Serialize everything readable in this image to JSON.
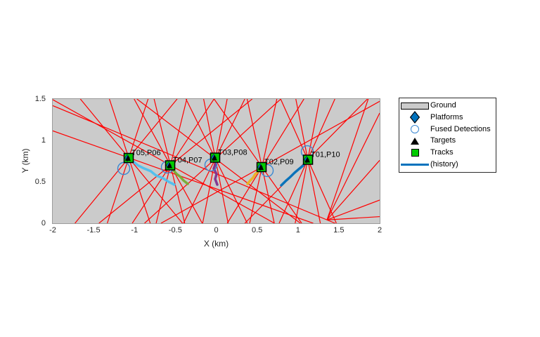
{
  "chart_data": {
    "type": "scatter",
    "title": "",
    "xlabel": "X (km)",
    "ylabel": "Y (km)",
    "xlim": [
      -2,
      2
    ],
    "ylim": [
      0,
      1.5
    ],
    "xticks": [
      -2,
      -1.5,
      -1,
      -0.5,
      0,
      0.5,
      1,
      1.5,
      2
    ],
    "yticks": [
      0,
      0.5,
      1,
      1.5
    ],
    "grid": false,
    "legend_position": "right-outside",
    "colors": {
      "ground": "#cbcbcb",
      "ray": "#ff0000",
      "platform": "#0072bd",
      "detection": "#3a87d2",
      "target": "#000000",
      "track": "#00cc00",
      "history_legend": "#0072bd"
    },
    "tracks": [
      {
        "label": "T05,P06",
        "x": -1.071,
        "y": 0.788,
        "history_color": "#4dbeee",
        "history": [
          [
            -1.071,
            0.788
          ],
          [
            -0.959,
            0.7
          ],
          [
            -0.885,
            0.663
          ],
          [
            -0.8,
            0.628
          ],
          [
            -0.738,
            0.578
          ],
          [
            -0.655,
            0.545
          ],
          [
            -0.584,
            0.502
          ],
          [
            -0.512,
            0.466
          ]
        ],
        "fused_detection": {
          "x": -1.131,
          "y": 0.661
        }
      },
      {
        "label": "T04,P07",
        "x": -0.563,
        "y": 0.699,
        "history_color": "#77ac30",
        "history": [
          [
            -0.563,
            0.699
          ],
          [
            -0.52,
            0.636
          ],
          [
            -0.484,
            0.595
          ],
          [
            -0.44,
            0.562
          ],
          [
            -0.398,
            0.515
          ],
          [
            -0.348,
            0.475
          ]
        ],
        "fused_detection": {
          "x": -0.598,
          "y": 0.678
        }
      },
      {
        "label": "T03,P08",
        "x": -0.013,
        "y": 0.792,
        "history_color": "#7e2f8e",
        "history": [
          [
            -0.013,
            0.792
          ],
          [
            -0.004,
            0.72
          ],
          [
            -0.03,
            0.661
          ],
          [
            0.004,
            0.593
          ],
          [
            -0.013,
            0.534
          ],
          [
            0.013,
            0.466
          ]
        ],
        "fused_detection": {
          "x": -0.065,
          "y": 0.703
        }
      },
      {
        "label": "T02,P09",
        "x": 0.555,
        "y": 0.678,
        "history_color": "#edb120",
        "history": [
          [
            0.555,
            0.678
          ],
          [
            0.52,
            0.627
          ],
          [
            0.477,
            0.593
          ],
          [
            0.452,
            0.551
          ],
          [
            0.417,
            0.517
          ],
          [
            0.383,
            0.475
          ]
        ],
        "fused_detection": {
          "x": 0.624,
          "y": 0.636
        }
      },
      {
        "label": "T01,P10",
        "x": 1.123,
        "y": 0.767,
        "history_color": "#0072bd",
        "history": [
          [
            1.123,
            0.767
          ],
          [
            1.062,
            0.695
          ],
          [
            1.011,
            0.653
          ],
          [
            0.959,
            0.61
          ],
          [
            0.907,
            0.559
          ],
          [
            0.847,
            0.508
          ],
          [
            0.796,
            0.458
          ]
        ],
        "fused_detection": {
          "x": 1.114,
          "y": 0.864
        }
      }
    ],
    "detection_rays": [
      [
        -1.333,
        0,
        -0.833,
        1.5
      ],
      [
        -0.807,
        0,
        -1.307,
        1.5
      ],
      [
        -1.728,
        0,
        -0.478,
        1.5
      ],
      [
        -0.412,
        0,
        -1.662,
        1.5
      ],
      [
        -2,
        1.492,
        0.713,
        0
      ],
      [
        -0.735,
        0,
        -0.36,
        1.5
      ],
      [
        -0.385,
        0,
        -0.76,
        1.5
      ],
      [
        -1.027,
        0,
        -0.027,
        1.5
      ],
      [
        -0.171,
        0,
        -1.004,
        1.5
      ],
      [
        -1.435,
        0,
        0.44,
        1.5
      ],
      [
        -0.166,
        0,
        0.134,
        1.5
      ],
      [
        0.146,
        0,
        -0.154,
        1.5
      ],
      [
        -0.4,
        0,
        0.35,
        1.5
      ],
      [
        0.38,
        0,
        -0.37,
        1.5
      ],
      [
        -0.877,
        0,
        0.79,
        1.5
      ],
      [
        1.03,
        0,
        -0.97,
        1.5
      ],
      [
        0.409,
        0,
        0.742,
        1.5
      ],
      [
        0.711,
        0,
        0.378,
        1.5
      ],
      [
        0.135,
        0,
        1.073,
        1.5
      ],
      [
        1.046,
        0,
        -0.026,
        1.5
      ],
      [
        -0.676,
        0,
        2,
        1.472
      ],
      [
        0.966,
        0,
        1.266,
        1.5
      ],
      [
        1.274,
        0,
        0.974,
        1.5
      ],
      [
        0.77,
        0,
        1.452,
        1.5
      ],
      [
        1.47,
        0,
        0.788,
        1.5
      ],
      [
        0.35,
        0,
        1.85,
        1.5
      ],
      [
        1.355,
        0.04,
        2,
        0.08
      ],
      [
        1.355,
        0.04,
        2,
        0.28
      ],
      [
        1.355,
        0.04,
        2,
        0.76
      ],
      [
        1.355,
        0.04,
        2,
        1.33
      ],
      [
        1.355,
        0.04,
        1.86,
        1.5
      ],
      [
        -2,
        1.42,
        1.455,
        0
      ],
      [
        -2,
        1.116,
        1.187,
        0
      ]
    ]
  },
  "legend": {
    "items": [
      {
        "label": "Ground",
        "marker": "gray-patch"
      },
      {
        "label": "Platforms",
        "marker": "blue-diamond"
      },
      {
        "label": "Fused Detections",
        "marker": "blue-circle-outline"
      },
      {
        "label": "Targets",
        "marker": "black-triangle"
      },
      {
        "label": "Tracks",
        "marker": "green-square"
      },
      {
        "label": "(history)",
        "marker": "blue-line"
      }
    ]
  }
}
